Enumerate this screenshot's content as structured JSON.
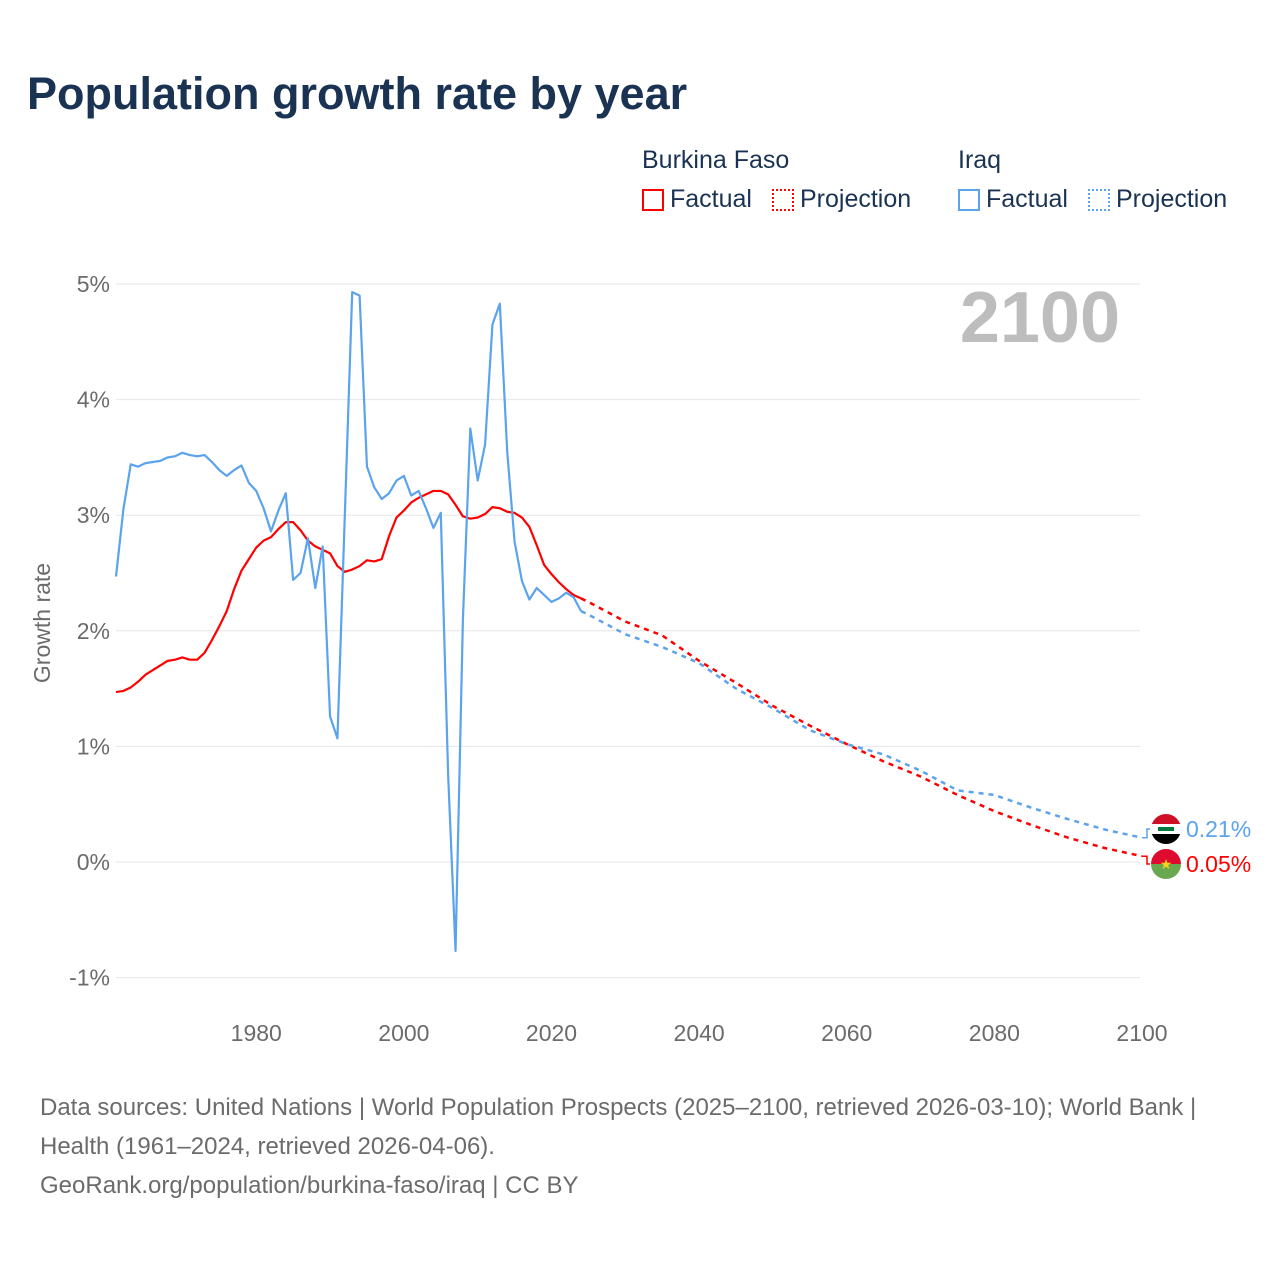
{
  "chart_data": {
    "type": "line",
    "title": "Population growth rate by year",
    "ylabel": "Growth rate",
    "xlabel": "",
    "ylim": [
      -1,
      5
    ],
    "xlim": [
      1961,
      2100
    ],
    "grid": true,
    "yticks": [
      -1,
      0,
      1,
      2,
      3,
      4,
      5
    ],
    "ytick_labels": [
      "-1%",
      "0%",
      "1%",
      "2%",
      "3%",
      "4%",
      "5%"
    ],
    "xticks": [
      1980,
      2000,
      2020,
      2040,
      2060,
      2080,
      2100
    ],
    "xtick_labels": [
      "1980",
      "2000",
      "2020",
      "2040",
      "2060",
      "2080",
      "2100"
    ],
    "year_overlay": "2100",
    "legend_placement": "top-right",
    "series": [
      {
        "name": "Burkina Faso",
        "color": "#ff0000",
        "end_label": "0.05%",
        "flag": "burkina-faso",
        "factual": {
          "start_year": 1961,
          "values": [
            1.47,
            1.48,
            1.51,
            1.56,
            1.62,
            1.66,
            1.7,
            1.74,
            1.75,
            1.77,
            1.75,
            1.75,
            1.81,
            1.92,
            2.04,
            2.17,
            2.36,
            2.52,
            2.62,
            2.72,
            2.78,
            2.81,
            2.88,
            2.94,
            2.94,
            2.87,
            2.78,
            2.73,
            2.7,
            2.67,
            2.56,
            2.51,
            2.53,
            2.56,
            2.61,
            2.6,
            2.62,
            2.82,
            2.98,
            3.04,
            3.11,
            3.15,
            3.18,
            3.21,
            3.21,
            3.18,
            3.09,
            2.99,
            2.97,
            2.98,
            3.01,
            3.07,
            3.06,
            3.03,
            3.02,
            2.98,
            2.9,
            2.74,
            2.57,
            2.49,
            2.42,
            2.36,
            2.31,
            2.28
          ]
        },
        "projection": {
          "years": [
            2024,
            2025,
            2030,
            2035,
            2040,
            2045,
            2050,
            2055,
            2060,
            2065,
            2070,
            2075,
            2080,
            2085,
            2090,
            2095,
            2100
          ],
          "values": [
            2.28,
            2.25,
            2.08,
            1.96,
            1.74,
            1.55,
            1.35,
            1.18,
            1.02,
            0.87,
            0.74,
            0.58,
            0.44,
            0.32,
            0.21,
            0.12,
            0.05
          ]
        }
      },
      {
        "name": "Iraq",
        "color": "#5ba3ec",
        "end_label": "0.21%",
        "flag": "iraq",
        "factual": {
          "start_year": 1961,
          "values": [
            2.47,
            3.05,
            3.44,
            3.42,
            3.45,
            3.46,
            3.47,
            3.5,
            3.51,
            3.54,
            3.52,
            3.51,
            3.52,
            3.46,
            3.39,
            3.34,
            3.39,
            3.43,
            3.28,
            3.21,
            3.06,
            2.86,
            3.04,
            3.19,
            2.44,
            2.5,
            2.8,
            2.37,
            2.73,
            1.26,
            1.07,
            3.0,
            4.93,
            4.9,
            3.42,
            3.24,
            3.14,
            3.19,
            3.3,
            3.34,
            3.17,
            3.21,
            3.06,
            2.89,
            3.02,
            0.75,
            -0.77,
            2.1,
            3.75,
            3.3,
            3.61,
            4.65,
            4.83,
            3.55,
            2.77,
            2.43,
            2.27,
            2.37,
            2.31,
            2.25,
            2.28,
            2.33,
            2.29,
            2.17
          ]
        },
        "projection": {
          "years": [
            2024,
            2025,
            2030,
            2035,
            2040,
            2045,
            2050,
            2055,
            2060,
            2065,
            2070,
            2075,
            2080,
            2085,
            2090,
            2095,
            2100
          ],
          "values": [
            2.17,
            2.14,
            1.97,
            1.86,
            1.72,
            1.5,
            1.33,
            1.14,
            1.02,
            0.93,
            0.79,
            0.62,
            0.58,
            0.47,
            0.37,
            0.28,
            0.21
          ]
        }
      }
    ]
  },
  "legend": {
    "groups": [
      {
        "country": "Burkina Faso",
        "factual_label": "Factual",
        "projection_label": "Projection"
      },
      {
        "country": "Iraq",
        "factual_label": "Factual",
        "projection_label": "Projection"
      }
    ]
  },
  "footer": {
    "sources": "Data sources: United Nations | World Population Prospects (2025–2100, retrieved 2026-03-10); World Bank | Health (1961–2024, retrieved 2026-04-06).",
    "credit": "GeoRank.org/population/burkina-faso/iraq | CC BY"
  }
}
